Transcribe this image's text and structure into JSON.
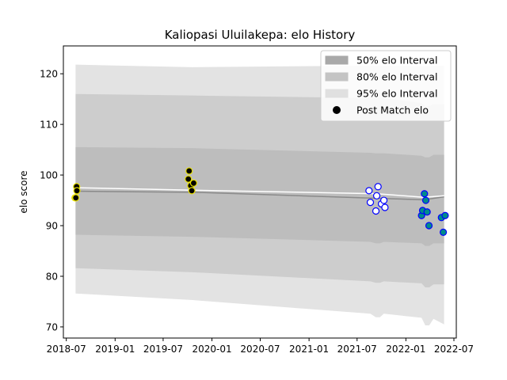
{
  "chart_data": {
    "type": "line",
    "title": "Kaliopasi Uluilakepa: elo History",
    "xlabel": "",
    "ylabel": "elo score",
    "x_ticks": [
      "2018-07",
      "2019-01",
      "2019-07",
      "2020-01",
      "2020-07",
      "2021-01",
      "2021-07",
      "2022-01",
      "2022-07"
    ],
    "y_ticks": [
      70,
      80,
      90,
      100,
      110,
      120
    ],
    "xlim": [
      "2018-06-20",
      "2022-07-10"
    ],
    "ylim": [
      67.8,
      125.5
    ],
    "legend_position": "top-right",
    "legend": [
      {
        "label": "50% elo Interval",
        "kind": "band",
        "color": "#a9a9a9"
      },
      {
        "label": "80% elo Interval",
        "kind": "band",
        "color": "#c4c4c4"
      },
      {
        "label": "95% elo Interval",
        "kind": "band",
        "color": "#e0e0e0"
      },
      {
        "label": "Post Match elo",
        "kind": "marker",
        "color": "#000000"
      }
    ],
    "mean_line": [
      {
        "date": "2018-08-05",
        "value": 96.8
      },
      {
        "date": "2019-10-20",
        "value": 96.6
      },
      {
        "date": "2021-09-15",
        "value": 95.4
      },
      {
        "date": "2022-03-10",
        "value": 95.1
      },
      {
        "date": "2022-05-25",
        "value": 95.7
      }
    ],
    "upper_line": [
      {
        "date": "2018-08-05",
        "value": 97.5
      },
      {
        "date": "2019-10-20",
        "value": 97.0
      },
      {
        "date": "2021-09-15",
        "value": 96.3
      },
      {
        "date": "2022-03-10",
        "value": 95.6
      },
      {
        "date": "2022-05-25",
        "value": 95.9
      }
    ],
    "bands": [
      {
        "name": "95%",
        "color": "#e3e3e3",
        "points": [
          {
            "date": "2018-08-05",
            "lo": 76.6,
            "hi": 121.8
          },
          {
            "date": "2019-10-20",
            "lo": 75.3,
            "hi": 121.3
          },
          {
            "date": "2021-08-20",
            "lo": 72.6,
            "hi": 121.6
          },
          {
            "date": "2021-09-10",
            "lo": 71.9,
            "hi": 121.6
          },
          {
            "date": "2021-09-25",
            "lo": 71.9,
            "hi": 121.6
          },
          {
            "date": "2021-10-10",
            "lo": 72.6,
            "hi": 121.6
          },
          {
            "date": "2022-03-01",
            "lo": 71.8,
            "hi": 121.5
          },
          {
            "date": "2022-03-15",
            "lo": 70.3,
            "hi": 121.5
          },
          {
            "date": "2022-03-30",
            "lo": 70.3,
            "hi": 121.5
          },
          {
            "date": "2022-04-15",
            "lo": 71.6,
            "hi": 121.6
          },
          {
            "date": "2022-05-25",
            "lo": 70.5,
            "hi": 121.6
          }
        ]
      },
      {
        "name": "80%",
        "color": "#cdcdcd",
        "points": [
          {
            "date": "2018-08-05",
            "lo": 81.6,
            "hi": 116.0
          },
          {
            "date": "2019-10-20",
            "lo": 80.8,
            "hi": 115.7
          },
          {
            "date": "2021-08-20",
            "lo": 79.0,
            "hi": 115.2
          },
          {
            "date": "2021-09-10",
            "lo": 78.7,
            "hi": 115.2
          },
          {
            "date": "2021-09-25",
            "lo": 78.7,
            "hi": 115.2
          },
          {
            "date": "2021-10-10",
            "lo": 79.0,
            "hi": 115.2
          },
          {
            "date": "2022-03-01",
            "lo": 78.6,
            "hi": 114.2
          },
          {
            "date": "2022-03-15",
            "lo": 77.8,
            "hi": 113.6
          },
          {
            "date": "2022-03-30",
            "lo": 77.8,
            "hi": 113.6
          },
          {
            "date": "2022-04-15",
            "lo": 78.4,
            "hi": 114.0
          },
          {
            "date": "2022-05-25",
            "lo": 78.4,
            "hi": 114.0
          }
        ]
      },
      {
        "name": "50%",
        "color": "#bdbdbd",
        "points": [
          {
            "date": "2018-08-05",
            "lo": 88.2,
            "hi": 105.5
          },
          {
            "date": "2019-10-20",
            "lo": 87.8,
            "hi": 105.3
          },
          {
            "date": "2021-08-20",
            "lo": 86.8,
            "hi": 104.4
          },
          {
            "date": "2021-09-10",
            "lo": 86.5,
            "hi": 104.3
          },
          {
            "date": "2021-09-25",
            "lo": 86.5,
            "hi": 104.3
          },
          {
            "date": "2021-10-10",
            "lo": 86.8,
            "hi": 104.3
          },
          {
            "date": "2022-03-01",
            "lo": 86.5,
            "hi": 103.8
          },
          {
            "date": "2022-03-15",
            "lo": 86.0,
            "hi": 103.5
          },
          {
            "date": "2022-03-30",
            "lo": 86.0,
            "hi": 103.5
          },
          {
            "date": "2022-04-15",
            "lo": 86.5,
            "hi": 104.0
          },
          {
            "date": "2022-05-25",
            "lo": 86.5,
            "hi": 104.0
          }
        ]
      }
    ],
    "point_groups": [
      {
        "fill": "#000000",
        "edge": "#e8e000",
        "points": [
          {
            "date": "2018-08-03",
            "value": 95.5
          },
          {
            "date": "2018-08-06",
            "value": 95.5
          },
          {
            "date": "2018-08-09",
            "value": 97.7
          },
          {
            "date": "2018-08-10",
            "value": 96.9
          }
        ]
      },
      {
        "fill": "#000000",
        "edge": "#e8e000",
        "points": [
          {
            "date": "2019-10-07",
            "value": 100.8
          },
          {
            "date": "2019-10-04",
            "value": 99.2
          },
          {
            "date": "2019-10-13",
            "value": 97.9
          },
          {
            "date": "2019-10-17",
            "value": 96.9
          },
          {
            "date": "2019-10-24",
            "value": 98.4
          }
        ]
      },
      {
        "fill": "#ffffff",
        "edge": "#0000ff",
        "points": [
          {
            "date": "2021-08-15",
            "value": 96.9
          },
          {
            "date": "2021-08-20",
            "value": 94.6
          },
          {
            "date": "2021-09-10",
            "value": 92.9
          },
          {
            "date": "2021-09-13",
            "value": 95.9
          },
          {
            "date": "2021-09-18",
            "value": 97.7
          },
          {
            "date": "2021-10-01",
            "value": 94.3
          },
          {
            "date": "2021-10-10",
            "value": 95.0
          },
          {
            "date": "2021-10-14",
            "value": 93.6
          }
        ]
      },
      {
        "fill": "#008b8b",
        "edge": "#0000ff",
        "points": [
          {
            "date": "2022-03-01",
            "value": 92.0
          },
          {
            "date": "2022-03-05",
            "value": 93.0
          },
          {
            "date": "2022-03-12",
            "value": 96.3
          },
          {
            "date": "2022-03-17",
            "value": 95.0
          },
          {
            "date": "2022-03-22",
            "value": 92.7
          },
          {
            "date": "2022-03-29",
            "value": 90.0
          },
          {
            "date": "2022-05-15",
            "value": 91.6
          },
          {
            "date": "2022-05-22",
            "value": 88.7
          },
          {
            "date": "2022-05-29",
            "value": 92.0
          }
        ]
      }
    ]
  }
}
